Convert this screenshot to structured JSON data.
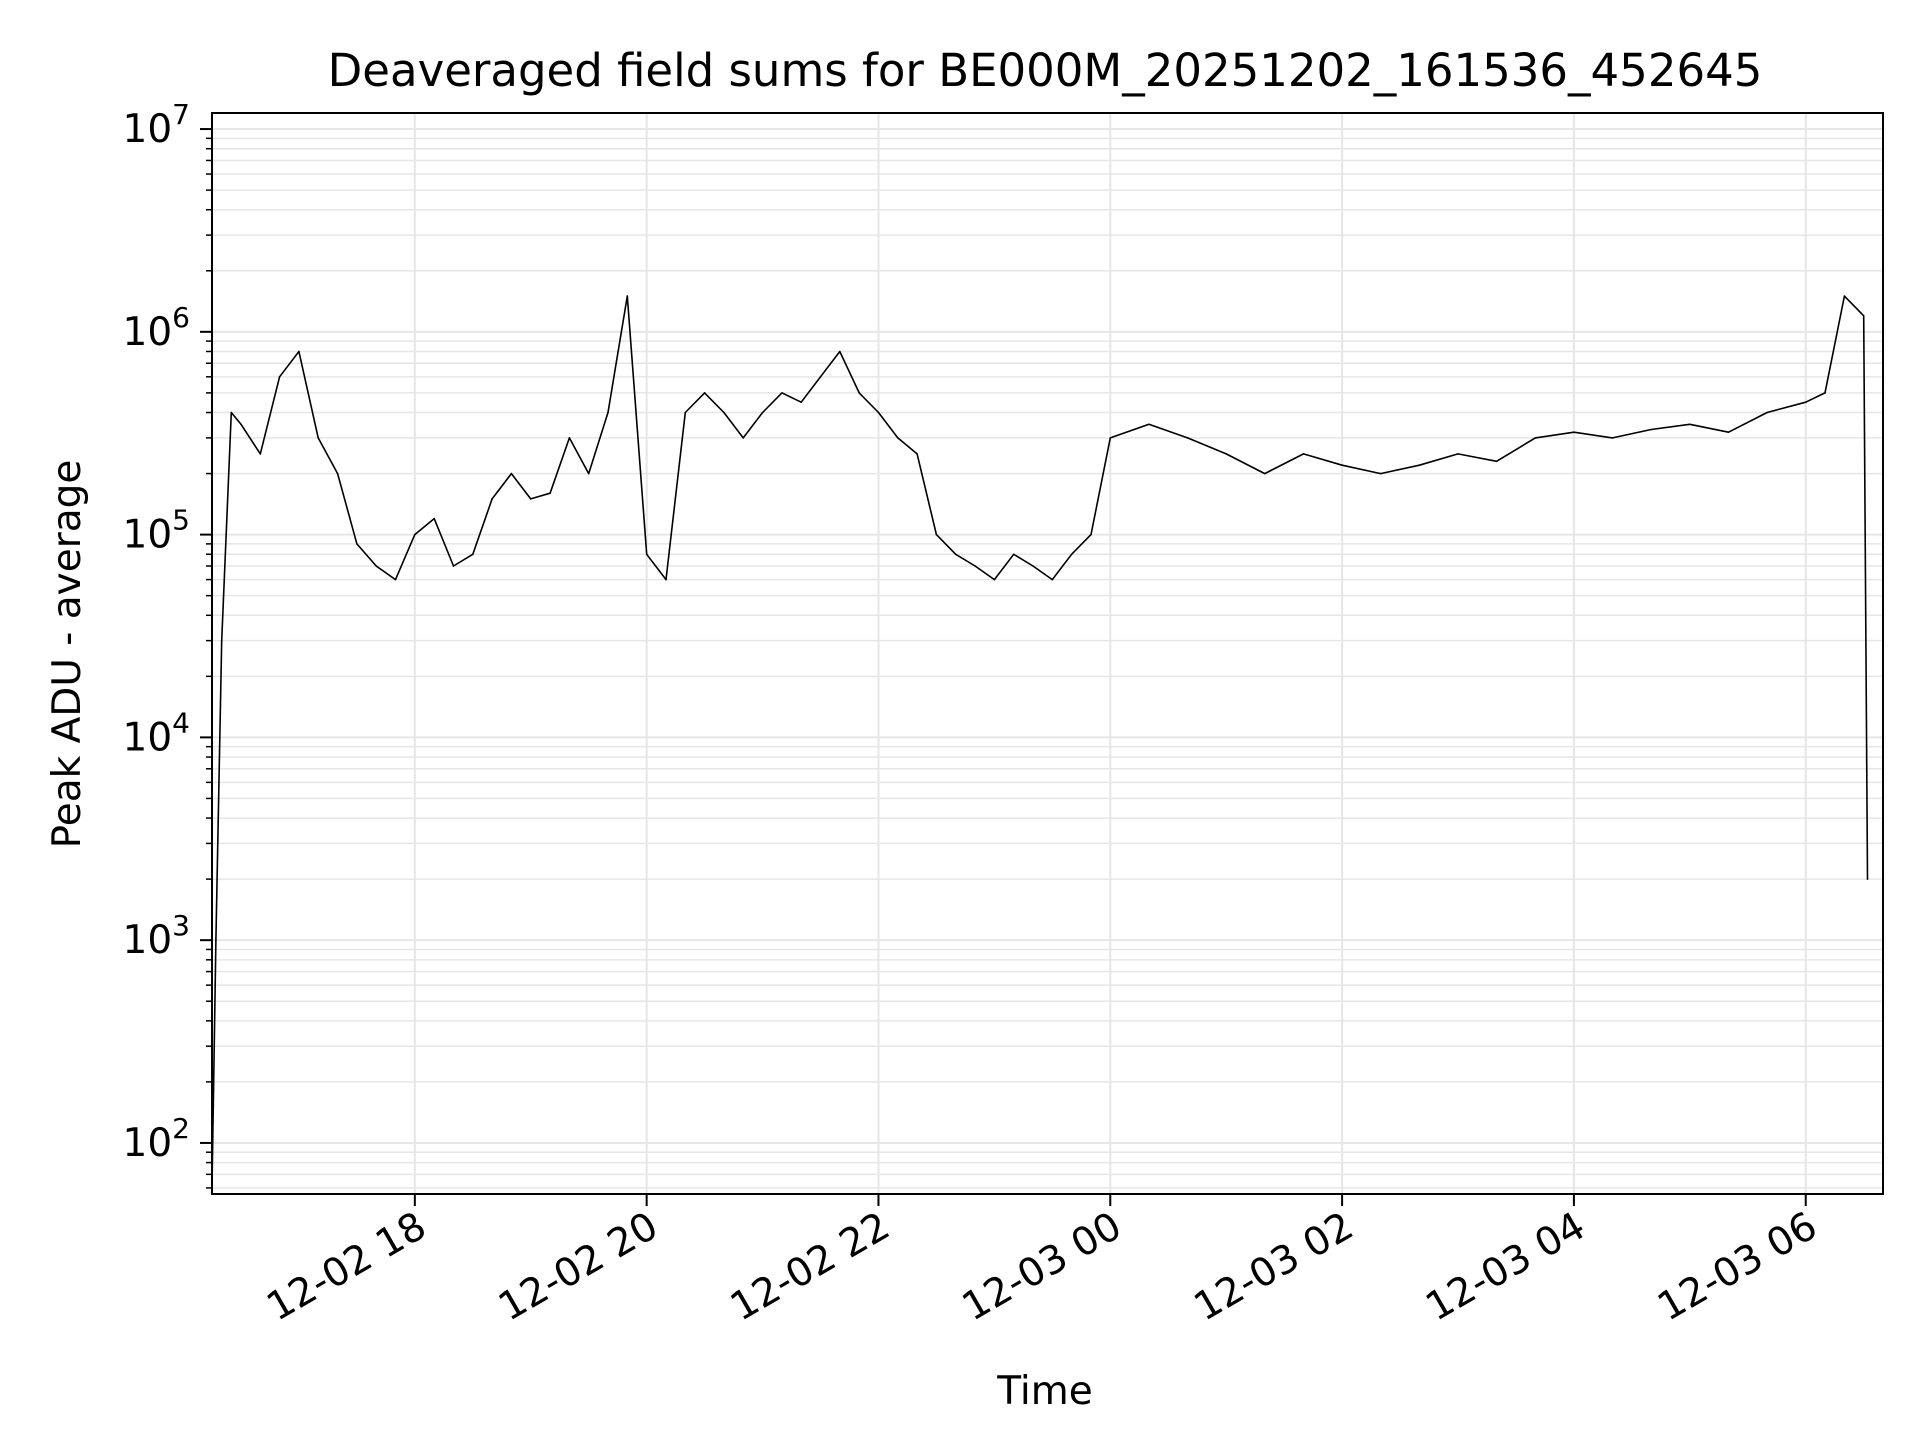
{
  "chart_data": {
    "type": "line",
    "title": "Deaveraged field sums for BE000M_20251202_161536_452645",
    "xlabel": "Time",
    "ylabel": "Peak ADU - average",
    "yscale": "log",
    "ylim": [
      56,
      12000000
    ],
    "xlim": [
      "2025-12-02 16:15",
      "2025-12-03 06:40"
    ],
    "grid": true,
    "line_color": "#000000",
    "grid_color": "#e6e6e6",
    "x_ticks": [
      "2025-12-02 18:00",
      "2025-12-02 20:00",
      "2025-12-02 22:00",
      "2025-12-03 00:00",
      "2025-12-03 02:00",
      "2025-12-03 04:00",
      "2025-12-03 06:00"
    ],
    "x_tick_labels": [
      "12-02 18",
      "12-02 20",
      "12-02 22",
      "12-03 00",
      "12-03 02",
      "12-03 04",
      "12-03 06"
    ],
    "y_ticks": [
      100,
      1000,
      10000,
      100000,
      1000000,
      10000000
    ],
    "y_tick_labels": [
      {
        "base": "10",
        "exp": "2"
      },
      {
        "base": "10",
        "exp": "3"
      },
      {
        "base": "10",
        "exp": "4"
      },
      {
        "base": "10",
        "exp": "5"
      },
      {
        "base": "10",
        "exp": "6"
      },
      {
        "base": "10",
        "exp": "7"
      }
    ],
    "series": [
      {
        "x": [
          "2025-12-02 16:15",
          "2025-12-02 16:17",
          "2025-12-02 16:20",
          "2025-12-02 16:25",
          "2025-12-02 16:30",
          "2025-12-02 16:40",
          "2025-12-02 16:50",
          "2025-12-02 17:00",
          "2025-12-02 17:10",
          "2025-12-02 17:20",
          "2025-12-02 17:30",
          "2025-12-02 17:40",
          "2025-12-02 17:50",
          "2025-12-02 18:00",
          "2025-12-02 18:10",
          "2025-12-02 18:20",
          "2025-12-02 18:30",
          "2025-12-02 18:40",
          "2025-12-02 18:50",
          "2025-12-02 19:00",
          "2025-12-02 19:10",
          "2025-12-02 19:20",
          "2025-12-02 19:30",
          "2025-12-02 19:40",
          "2025-12-02 19:50",
          "2025-12-02 20:00",
          "2025-12-02 20:10",
          "2025-12-02 20:20",
          "2025-12-02 20:30",
          "2025-12-02 20:40",
          "2025-12-02 20:50",
          "2025-12-02 21:00",
          "2025-12-02 21:10",
          "2025-12-02 21:20",
          "2025-12-02 21:30",
          "2025-12-02 21:40",
          "2025-12-02 21:50",
          "2025-12-02 22:00",
          "2025-12-02 22:10",
          "2025-12-02 22:20",
          "2025-12-02 22:30",
          "2025-12-02 22:40",
          "2025-12-02 22:50",
          "2025-12-02 23:00",
          "2025-12-02 23:10",
          "2025-12-02 23:20",
          "2025-12-02 23:30",
          "2025-12-02 23:40",
          "2025-12-02 23:50",
          "2025-12-03 00:00",
          "2025-12-03 00:20",
          "2025-12-03 00:40",
          "2025-12-03 01:00",
          "2025-12-03 01:20",
          "2025-12-03 01:40",
          "2025-12-03 02:00",
          "2025-12-03 02:20",
          "2025-12-03 02:40",
          "2025-12-03 03:00",
          "2025-12-03 03:20",
          "2025-12-03 03:40",
          "2025-12-03 04:00",
          "2025-12-03 04:20",
          "2025-12-03 04:40",
          "2025-12-03 05:00",
          "2025-12-03 05:20",
          "2025-12-03 05:40",
          "2025-12-03 06:00",
          "2025-12-03 06:10",
          "2025-12-03 06:20",
          "2025-12-03 06:30",
          "2025-12-03 06:32"
        ],
        "y": [
          60,
          1000,
          30000,
          400000,
          350000,
          250000,
          600000,
          800000,
          300000,
          200000,
          90000,
          70000,
          60000,
          100000,
          120000,
          70000,
          80000,
          150000,
          200000,
          150000,
          160000,
          300000,
          200000,
          400000,
          1500000,
          80000,
          60000,
          400000,
          500000,
          400000,
          300000,
          400000,
          500000,
          450000,
          600000,
          800000,
          500000,
          400000,
          300000,
          250000,
          100000,
          80000,
          70000,
          60000,
          80000,
          70000,
          60000,
          80000,
          100000,
          300000,
          350000,
          300000,
          250000,
          200000,
          250000,
          220000,
          200000,
          220000,
          250000,
          230000,
          300000,
          320000,
          300000,
          330000,
          350000,
          320000,
          400000,
          450000,
          500000,
          1500000,
          1200000,
          2000
        ]
      }
    ]
  }
}
